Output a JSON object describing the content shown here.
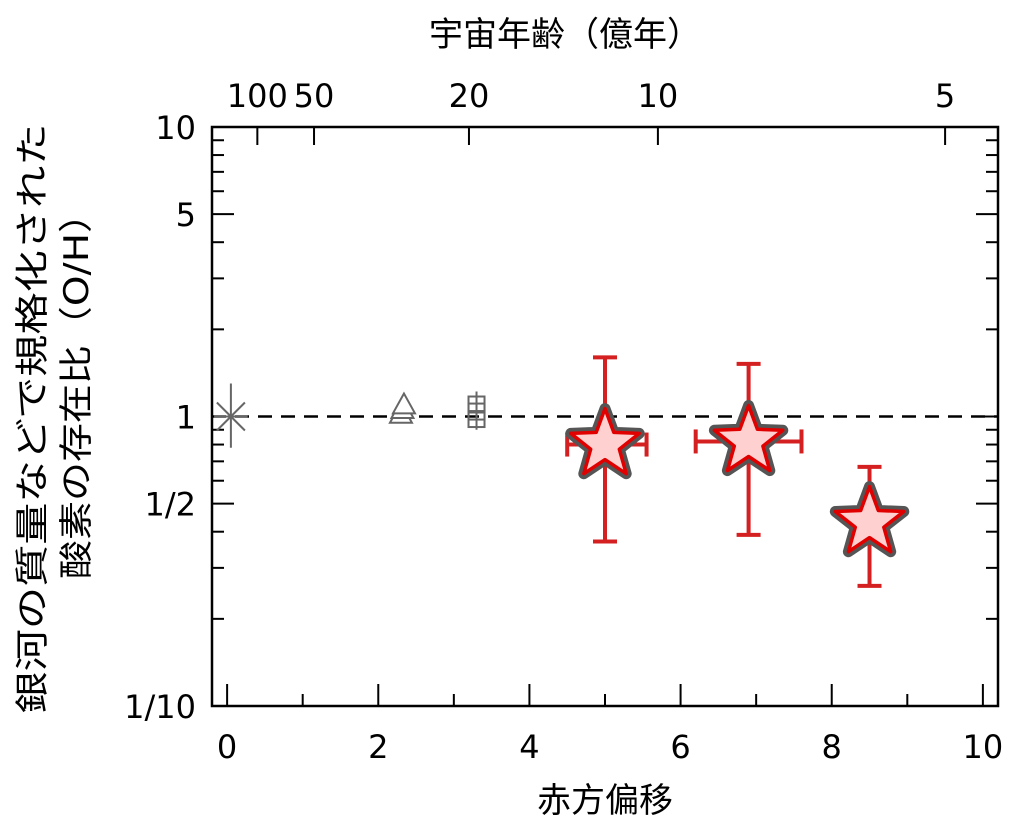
{
  "chart_data": {
    "type": "scatter",
    "xlabel": "赤方偏移",
    "ylabel_line1": "銀河の質量などで規格化された",
    "ylabel_line2": "酸素の存在比（O/H）",
    "top_xlabel": "宇宙年齢（億年）",
    "xlim": [
      -0.2,
      10.2
    ],
    "ylim": [
      0.1,
      10
    ],
    "yscale": "log",
    "x_ticks": [
      0,
      2,
      4,
      6,
      8,
      10
    ],
    "x_tick_labels": [
      "0",
      "2",
      "4",
      "6",
      "8",
      "10"
    ],
    "y_ticks": [
      0.1,
      0.5,
      1,
      5,
      10
    ],
    "y_tick_labels": [
      "1/10",
      "1/2",
      "1",
      "5",
      "10"
    ],
    "top_ticks": [
      {
        "label": "100",
        "z": 0.4
      },
      {
        "label": "50",
        "z": 1.15
      },
      {
        "label": "20",
        "z": 3.2
      },
      {
        "label": "10",
        "z": 5.7
      },
      {
        "label": "5",
        "z": 9.5
      }
    ],
    "reference_line": {
      "y": 1,
      "style": "dashed"
    },
    "reference_points": [
      {
        "marker": "asterisk",
        "x": 0.05,
        "y": 1.0,
        "yerr_low": 0.78,
        "yerr_high": 1.3
      },
      {
        "marker": "triangle",
        "x": 2.3,
        "y": 1.02
      },
      {
        "marker": "triangle",
        "x": 2.32,
        "y": 1.06
      },
      {
        "marker": "triangle",
        "x": 2.34,
        "y": 1.1
      },
      {
        "marker": "square",
        "x": 3.3,
        "y": 0.98,
        "yerr_low": 0.9,
        "yerr_high": 1.22
      },
      {
        "marker": "square",
        "x": 3.3,
        "y": 1.04
      },
      {
        "marker": "square",
        "x": 3.3,
        "y": 1.1
      }
    ],
    "series": [
      {
        "marker": "star",
        "points": [
          {
            "x": 5.0,
            "y": 0.8,
            "xerr_low": 4.5,
            "xerr_high": 5.55,
            "yerr_low": 0.37,
            "yerr_high": 1.6
          },
          {
            "x": 6.9,
            "y": 0.82,
            "xerr_low": 6.2,
            "xerr_high": 7.6,
            "yerr_low": 0.39,
            "yerr_high": 1.52
          },
          {
            "x": 8.5,
            "y": 0.43,
            "xerr_low": 8.5,
            "xerr_high": 8.5,
            "yerr_low": 0.26,
            "yerr_high": 0.67
          }
        ]
      }
    ],
    "colors": {
      "star_fill": "#ffd0d0",
      "star_edge": "#e00000",
      "star_outline": "#555555",
      "errorbar": "#d42020",
      "ref_marker": "#666666"
    }
  }
}
